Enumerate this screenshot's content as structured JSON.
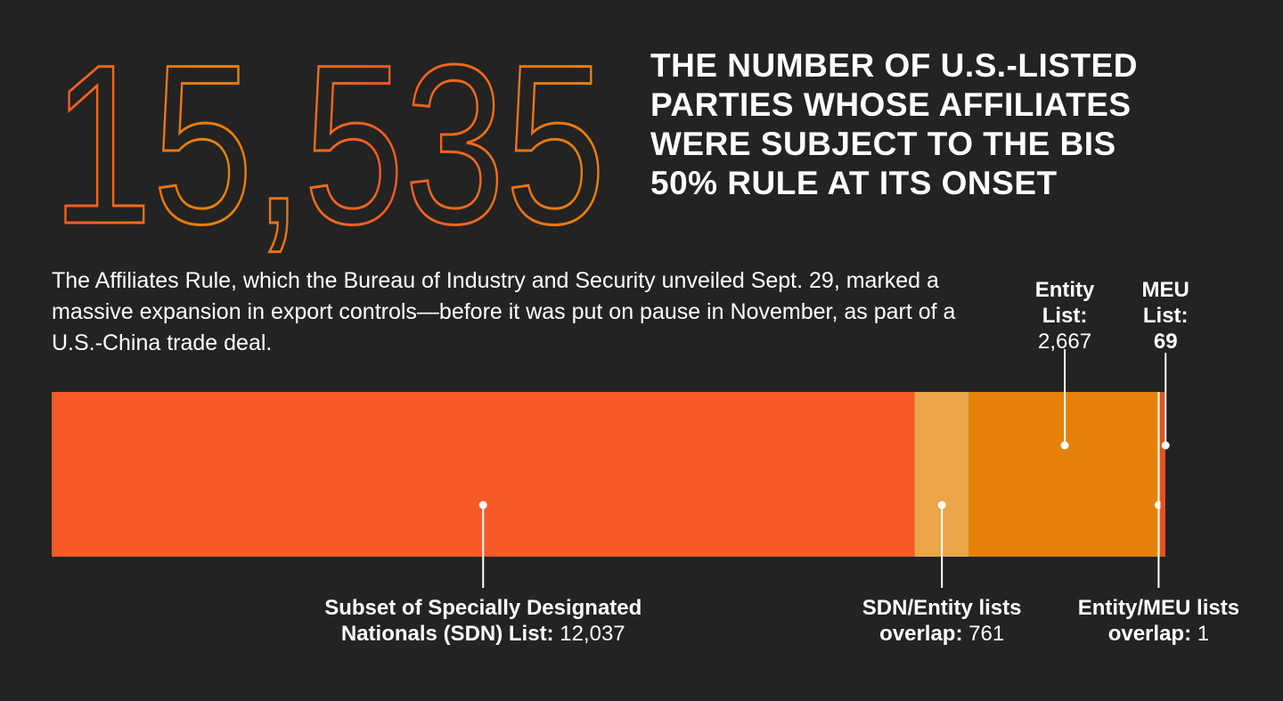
{
  "chart_data": {
    "type": "stacked-bar",
    "title": "15,535",
    "subtitle": "THE NUMBER OF U.S.-LISTED PARTIES WHOSE AFFILIATES WERE SUBJECT TO THE BIS 50% RULE AT ITS ONSET",
    "description": "The Affiliates Rule, which the Bureau of Industry and Security unveiled Sept. 29, marked a massive expansion in export controls—before it was put on pause in November, as part of a U.S.-China trade deal.",
    "series": [
      {
        "name": "Subset of Specially Designated Nationals (SDN) List:",
        "color": "#f55a27",
        "values": [
          12037
        ],
        "value_labels": [
          "12,037"
        ]
      },
      {
        "name": "SDN/Entity lists overlap:",
        "color": "#eca549",
        "values": [
          761
        ],
        "value_labels": [
          "761"
        ]
      },
      {
        "name": "Entity List:",
        "color": "#e6820a",
        "values": [
          2667
        ],
        "value_labels": [
          "2,667"
        ]
      },
      {
        "name": "Entity/MEU lists overlap:",
        "color": "#e6820a",
        "values": [
          1
        ],
        "value_labels": [
          "1"
        ]
      },
      {
        "name": "MEU List:",
        "color": "#e0522a",
        "values": [
          69
        ],
        "value_labels": [
          "69"
        ]
      }
    ]
  }
}
